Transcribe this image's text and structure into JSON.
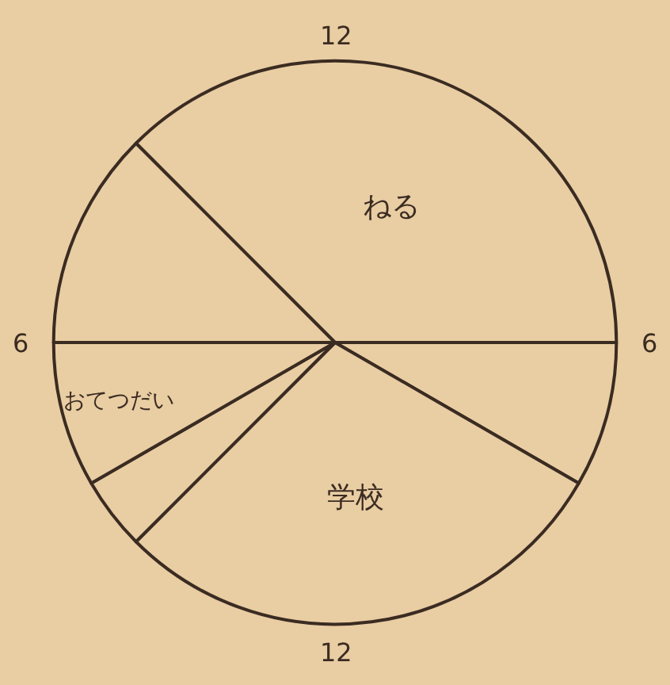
{
  "chart_data": {
    "type": "pie",
    "categories": [
      "ねる",
      null,
      "学校",
      null,
      "おてつだい",
      null
    ],
    "values": [
      37.5,
      8.33,
      29.17,
      4.17,
      8.33,
      12.5
    ],
    "colors": [
      "#e9cda3",
      "#e9cda3",
      "#e9cda3",
      "#e9cda3",
      "#e9cda3",
      "#e9cda3"
    ],
    "annotations": [
      "12",
      "6",
      "12",
      "6"
    ],
    "legend": false
  }
}
